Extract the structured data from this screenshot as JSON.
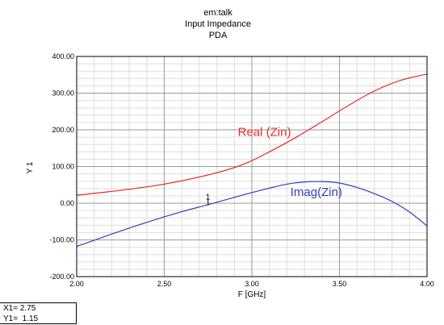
{
  "chart_data": {
    "type": "line",
    "title": [
      "em:talk",
      "Input Impedance",
      "PDA"
    ],
    "xlabel": "F [GHz]",
    "ylabel": "Y 1",
    "xlim": [
      2.0,
      4.0
    ],
    "ylim": [
      -200,
      400
    ],
    "xticks": [
      "2.00",
      "2.50",
      "3.00",
      "3.50",
      "4.00"
    ],
    "yticks": [
      "400.00",
      "300.00",
      "200.00",
      "100.00",
      "0.00",
      "-100.00",
      "-200.00"
    ],
    "grid": true,
    "series": [
      {
        "name": "Real (Zin)",
        "color": "#e8292c",
        "x": [
          2.0,
          2.25,
          2.5,
          2.75,
          2.9,
          3.0,
          3.1,
          3.25,
          3.4,
          3.55,
          3.7,
          3.85,
          4.0
        ],
        "y": [
          22,
          35,
          52,
          77,
          97,
          116,
          140,
          179,
          222,
          266,
          306,
          335,
          352
        ]
      },
      {
        "name": "Imag(Zin)",
        "color": "#2e3fc4",
        "x": [
          2.0,
          2.2,
          2.4,
          2.6,
          2.75,
          2.9,
          3.0,
          3.1,
          3.2,
          3.3,
          3.4,
          3.5,
          3.6,
          3.7,
          3.8,
          3.9,
          4.0
        ],
        "y": [
          -118,
          -84,
          -52,
          -23,
          -4,
          16,
          29,
          41,
          52,
          58,
          59,
          55,
          43,
          26,
          5,
          -24,
          -62
        ]
      }
    ],
    "annotations": [
      {
        "text": "Real (Zin)",
        "color": "#e8292c",
        "x": 2.92,
        "y": 183
      },
      {
        "text": "Imag(Zin)",
        "color": "#2e3fc4",
        "x": 3.22,
        "y": 20
      },
      {
        "text": "1",
        "color": "#000000",
        "x": 2.75,
        "y": 1.15
      }
    ],
    "marker": {
      "x": 2.75,
      "y": 1.15,
      "label": "1"
    }
  },
  "readout": {
    "x_line": "X1= 2.75",
    "y_line": "Y1=  1.15"
  }
}
